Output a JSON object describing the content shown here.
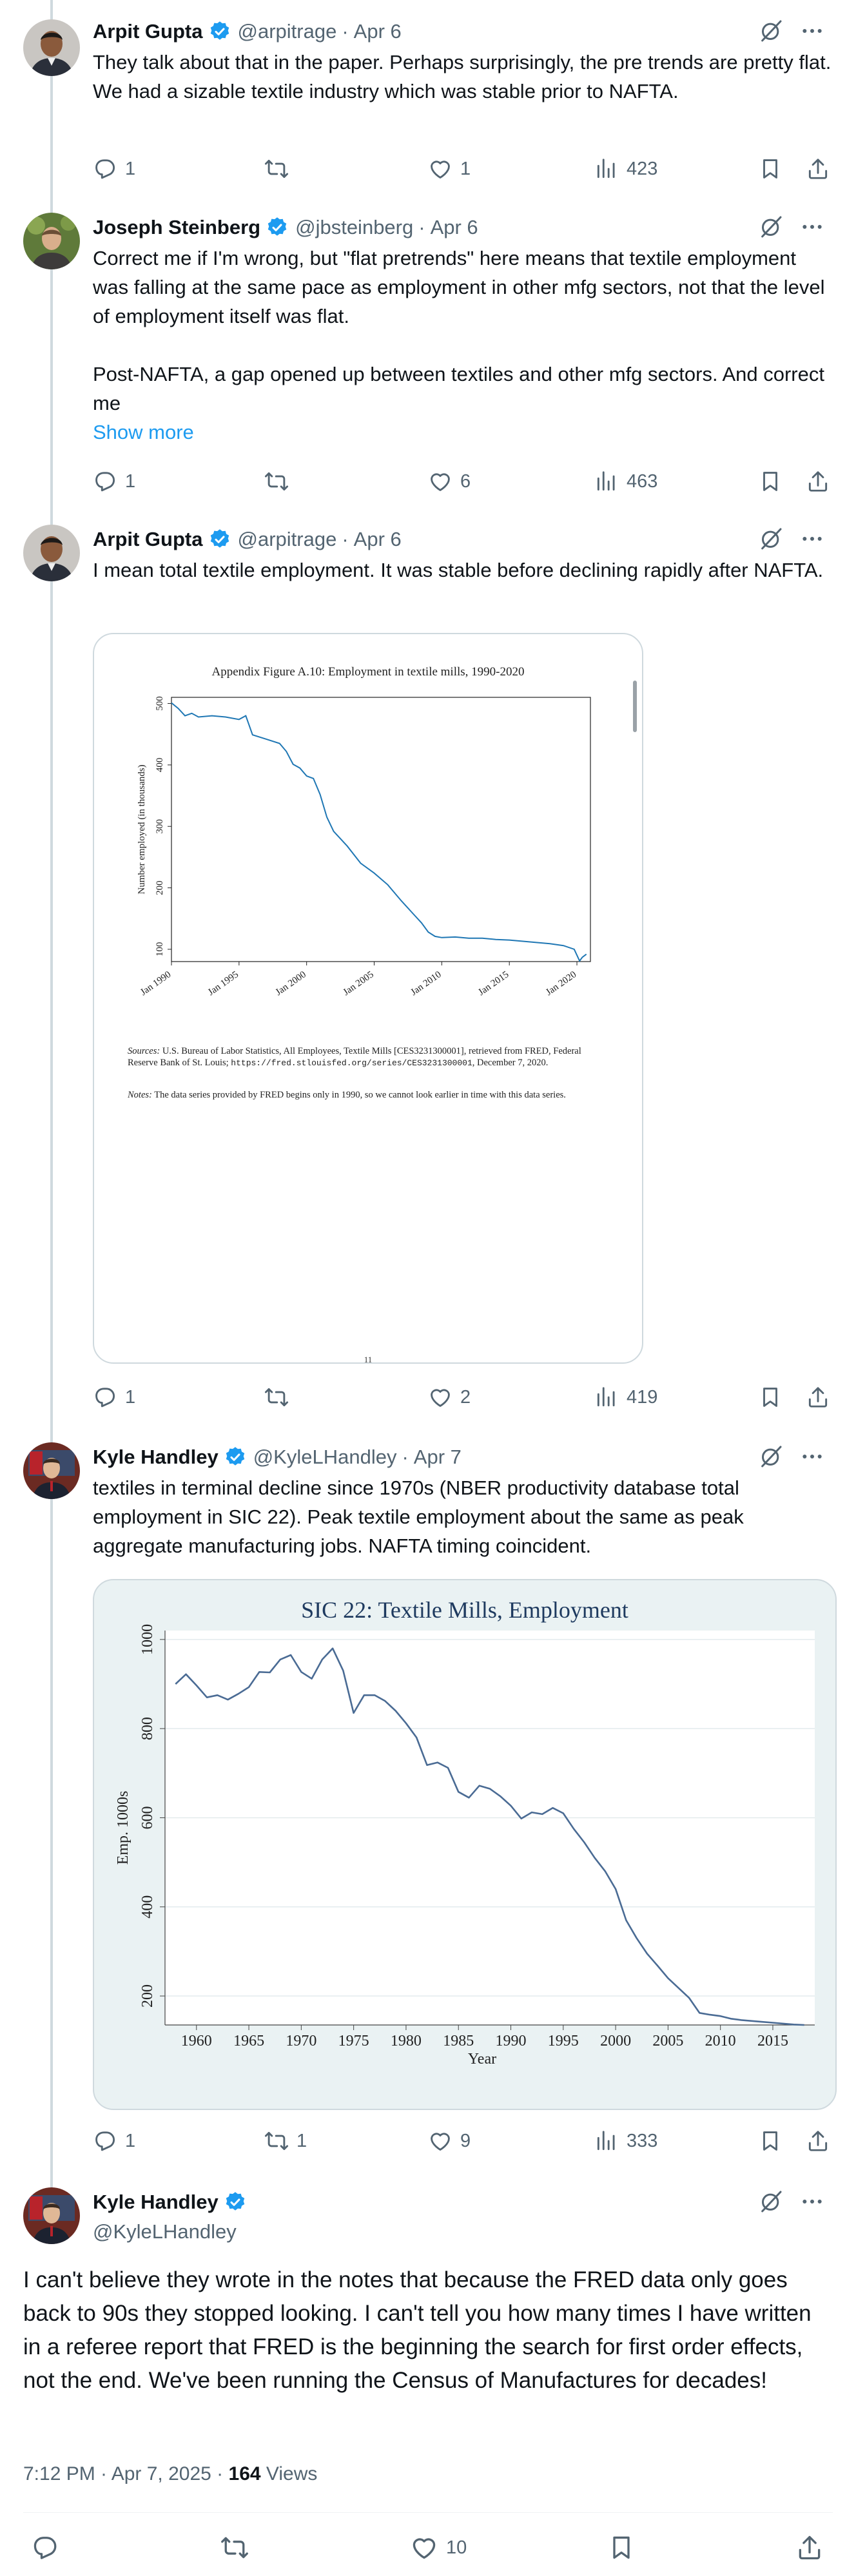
{
  "tweets": [
    {
      "name": "Arpit Gupta",
      "handle": "@arpitrage",
      "date": "Apr 6",
      "text": "They talk about that in the paper. Perhaps surprisingly, the pre trends are pretty flat. We had a sizable textile industry which was stable prior to NAFTA.",
      "replies": "1",
      "retweets": "",
      "likes": "1",
      "views": "423"
    },
    {
      "name": "Joseph Steinberg",
      "handle": "@jbsteinberg",
      "date": "Apr 6",
      "text1": "Correct me if I'm wrong, but \"flat pretrends\" here means that textile employment was falling at the same pace as employment in other mfg sectors, not that the level of employment itself was flat.",
      "text2": "Post-NAFTA, a gap opened up between textiles and other mfg sectors. And correct me",
      "show_more": "Show more",
      "replies": "1",
      "retweets": "",
      "likes": "6",
      "views": "463"
    },
    {
      "name": "Arpit Gupta",
      "handle": "@arpitrage",
      "date": "Apr 6",
      "text": "I mean total textile employment. It was stable before declining rapidly after NAFTA.",
      "replies": "1",
      "retweets": "",
      "likes": "2",
      "views": "419"
    },
    {
      "name": "Kyle Handley",
      "handle": "@KyleLHandley",
      "date": "Apr 7",
      "text": "textiles in terminal decline since 1970s (NBER productivity database total employment in SIC 22). Peak textile employment about the same as peak aggregate manufacturing jobs. NAFTA timing coincident.",
      "replies": "1",
      "retweets": "1",
      "likes": "9",
      "views": "333"
    }
  ],
  "main": {
    "name": "Kyle Handley",
    "handle": "@KyleLHandley",
    "text": "I can't believe they wrote in the notes that because the FRED data only goes back to 90s they stopped looking. I can't tell you how many times I have written in a referee report that FRED is the beginning the search for first order effects, not the end. We've been running the Census of Manufactures for decades!",
    "time": "7:12 PM · Apr 7, 2025",
    "views_count": "164",
    "views_label": " Views",
    "likes": "10"
  },
  "paper_figure": {
    "title": "Appendix Figure A.10: Employment in textile mills, 1990-2020",
    "sources_label": "Sources:",
    "sources_text": " U.S. Bureau of Labor Statistics, All Employees, Textile Mills [CES3231300001], retrieved from FRED, Federal Reserve Bank of St. Louis;",
    "sources_url": "https://fred.stlouisfed.org/series/CES3231300001",
    "sources_date": ", December 7, 2020.",
    "notes_label": "Notes:",
    "notes_text": " The data series provided by FRED begins only in 1990, so we cannot look earlier in time with this data series.",
    "page_number": "11"
  },
  "chart_data": [
    {
      "type": "line",
      "title": "Appendix Figure A.10: Employment in textile mills, 1990-2020",
      "xlabel": "",
      "ylabel": "Number employed (in thousands)",
      "x_tick_labels": [
        "Jan 1990",
        "Jan 1995",
        "Jan 2000",
        "Jan 2005",
        "Jan 2010",
        "Jan 2015",
        "Jan 2020"
      ],
      "y_ticks": [
        100,
        200,
        300,
        400,
        500
      ],
      "ylim": [
        80,
        510
      ],
      "xlim": [
        1990,
        2021
      ],
      "grid": false,
      "x": [
        1990,
        1990.5,
        1991,
        1991.5,
        1992,
        1993,
        1994,
        1995,
        1995.5,
        1996,
        1997,
        1998,
        1998.5,
        1999,
        1999.5,
        2000,
        2000.5,
        2001,
        2001.5,
        2002,
        2003,
        2004,
        2005,
        2006,
        2007,
        2008,
        2008.5,
        2009,
        2009.5,
        2010,
        2011,
        2012,
        2013,
        2014,
        2015,
        2016,
        2017,
        2018,
        2019,
        2019.8,
        2020.2,
        2020.4,
        2020.7
      ],
      "y": [
        501,
        492,
        480,
        484,
        478,
        480,
        478,
        474,
        480,
        449,
        442,
        435,
        422,
        401,
        395,
        382,
        378,
        352,
        315,
        292,
        268,
        240,
        224,
        205,
        179,
        155,
        143,
        128,
        121,
        119,
        120,
        118,
        118,
        116,
        115,
        113,
        111,
        109,
        106,
        100,
        81,
        87,
        92
      ]
    },
    {
      "type": "line",
      "title": "SIC 22: Textile Mills, Employment",
      "xlabel": "Year",
      "ylabel": "Emp. 1000s",
      "x_ticks": [
        1960,
        1965,
        1970,
        1975,
        1980,
        1985,
        1990,
        1995,
        2000,
        2005,
        2010,
        2015
      ],
      "y_ticks": [
        200,
        400,
        600,
        800,
        1000
      ],
      "xlim": [
        1957,
        2019
      ],
      "ylim": [
        135,
        1020
      ],
      "grid": true,
      "x": [
        1958,
        1959,
        1960,
        1961,
        1962,
        1963,
        1964,
        1965,
        1966,
        1967,
        1968,
        1969,
        1970,
        1971,
        1972,
        1973,
        1974,
        1975,
        1976,
        1977,
        1978,
        1979,
        1980,
        1981,
        1982,
        1983,
        1984,
        1985,
        1986,
        1987,
        1988,
        1989,
        1990,
        1991,
        1992,
        1993,
        1994,
        1995,
        1996,
        1997,
        1998,
        1999,
        2000,
        2001,
        2002,
        2003,
        2004,
        2005,
        2006,
        2007,
        2008,
        2009,
        2010,
        2011,
        2012,
        2013,
        2014,
        2015,
        2016,
        2017,
        2018
      ],
      "y": [
        900,
        922,
        897,
        870,
        875,
        865,
        878,
        893,
        927,
        926,
        955,
        965,
        927,
        912,
        955,
        980,
        930,
        835,
        875,
        875,
        862,
        840,
        812,
        780,
        718,
        724,
        712,
        658,
        645,
        672,
        665,
        648,
        627,
        598,
        612,
        608,
        622,
        610,
        575,
        545,
        510,
        480,
        440,
        370,
        330,
        295,
        268,
        240,
        218,
        196,
        162,
        158,
        155,
        149,
        146,
        144,
        142,
        140,
        138,
        136,
        135
      ]
    }
  ],
  "colors": {
    "accent": "#1d9bf0",
    "verified": "#1d9bf0",
    "secondary": "#536471",
    "chart2_line": "#4a6b94",
    "chart2_bg": "#eaf2f3"
  }
}
